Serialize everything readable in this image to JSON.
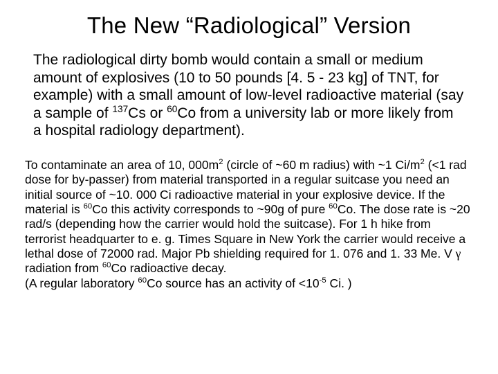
{
  "title": "The New “Radiological” Version",
  "para1_a": "The radiological dirty bomb would contain a small or medium amount of explosives (10 to 50 pounds [4. 5 - 23 kg] of TNT, for example) with a small amount of low-level radioactive material (say a sample of ",
  "sup137": "137",
  "para1_b": "Cs or ",
  "sup60": "60",
  "para1_c": "Co from a university lab or more likely from a hospital radiology department).",
  "p2_a": "To contaminate an area of 10, 000m",
  "sup2": "2",
  "p2_b": " (circle of ~60 m radius) with ~1 Ci/m",
  "p2_c": " (<1 rad dose for by-passer) from material transported in a regular suitcase you need an initial source of ~10. 000 Ci radioactive material in your explosive device. If the material is ",
  "p2_d": "Co this activity corresponds to ~90g of pure ",
  "p2_e": "Co. The dose rate is ~20 rad/s (depending how the carrier would hold the suitcase). For 1 h hike from terrorist headquarter to e. g. Times Square in New York the carrier would receive a lethal dose of 72000 rad. Major Pb shielding required for 1. 076 and 1. 33 Me. V ",
  "gamma": "γ",
  "p2_f": " radiation from ",
  "p2_g": "Co radioactive decay.",
  "p2_h": "(A regular laboratory ",
  "p2_i": "Co source has an activity of <10",
  "supm5": "-5",
  "p2_j": " Ci. )"
}
